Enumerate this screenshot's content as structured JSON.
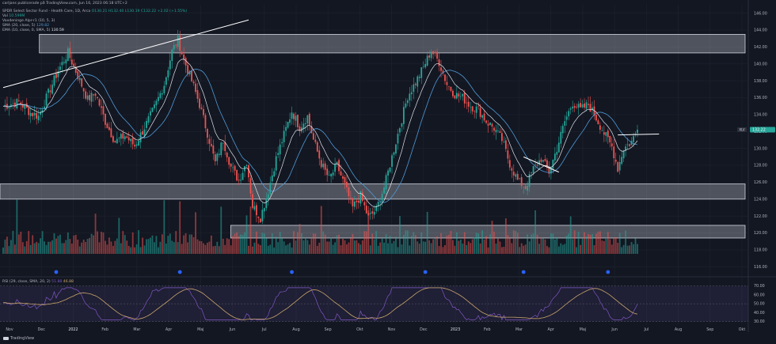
{
  "header": {
    "author_line": "carljans publicerade på TradingView.com, Jun 16, 2023 06:18 UTC+2",
    "symbol_line": "SPDR Select Sector Fund - Health Care, 1D, Arca",
    "ohlc": "O130.21 H132.40 L130.19 C132.22 +2.02 (+1.55%)",
    "vol_label": "Vol",
    "vol_value": "10.599M",
    "ind1": "Vaxdeninge Alpr-r1 (10, 5, 3)",
    "sma_label": "SMA (20, close, 5)",
    "sma_value": "129.82",
    "ema_label": "EMA (10, close, 0, SMA, 5)",
    "ema_value": "130.59",
    "rsi_label": "RSI (29, close, SMA, 20, 2)",
    "rsi_value1": "51.88",
    "rsi_value2": "46.88"
  },
  "branding": {
    "name": "TradingView"
  },
  "colors": {
    "up": "#26a69a",
    "down": "#ef5350",
    "sma": "#4f9ad6",
    "ema": "#e0e3eb",
    "rsi": "#7e57c2",
    "rsi_ma": "#c9a66b",
    "zone": "#d1d4dc",
    "bg": "#131722"
  },
  "chart_data": [
    {
      "type": "candlestick",
      "title": "SPDR Select Sector Fund - Health Care, 1D, Arca",
      "symbol": "XLV",
      "last_price": "132.22",
      "x_tick_labels": [
        "Nov",
        "Dec",
        "2022",
        "Feb",
        "Mar",
        "Apr",
        "Maj",
        "Jun",
        "Jul",
        "Aug",
        "Sep",
        "Okt",
        "Nov",
        "Dec",
        "2023",
        "Feb",
        "Mar",
        "Apr",
        "Maj",
        "Jun",
        "Jul",
        "Aug",
        "Sep",
        "Okt"
      ],
      "y_tick_labels": [
        "146.00",
        "144.00",
        "142.00",
        "140.00",
        "138.00",
        "136.00",
        "134.00",
        "132.00",
        "130.00",
        "128.00",
        "126.00",
        "124.00",
        "122.00",
        "120.00",
        "118.00",
        "116.00"
      ],
      "ylim": [
        115,
        147
      ],
      "trend_path": [
        [
          0,
          135.0
        ],
        [
          8,
          135.5
        ],
        [
          14,
          134.2
        ],
        [
          18,
          133.8
        ],
        [
          22,
          136.0
        ],
        [
          28,
          139.2
        ],
        [
          33,
          141.3
        ],
        [
          38,
          138.6
        ],
        [
          43,
          135.8
        ],
        [
          47,
          136.5
        ],
        [
          52,
          133.2
        ],
        [
          57,
          130.8
        ],
        [
          62,
          131.5
        ],
        [
          67,
          130.3
        ],
        [
          72,
          132.5
        ],
        [
          77,
          134.8
        ],
        [
          82,
          137.6
        ],
        [
          86,
          141.5
        ],
        [
          89,
          142.9
        ],
        [
          92,
          140.5
        ],
        [
          96,
          138.0
        ],
        [
          100,
          135.2
        ],
        [
          104,
          131.8
        ],
        [
          108,
          128.3
        ],
        [
          112,
          131.0
        ],
        [
          116,
          127.8
        ],
        [
          120,
          126.2
        ],
        [
          124,
          128.5
        ],
        [
          127,
          123.2
        ],
        [
          131,
          121.8
        ],
        [
          135,
          125.0
        ],
        [
          139,
          128.8
        ],
        [
          143,
          131.6
        ],
        [
          147,
          134.4
        ],
        [
          151,
          132.5
        ],
        [
          155,
          133.8
        ],
        [
          158,
          131.0
        ],
        [
          162,
          128.2
        ],
        [
          166,
          126.4
        ],
        [
          170,
          128.0
        ],
        [
          174,
          125.6
        ],
        [
          178,
          123.0
        ],
        [
          182,
          124.4
        ],
        [
          186,
          121.8
        ],
        [
          190,
          122.8
        ],
        [
          194,
          125.4
        ],
        [
          198,
          129.0
        ],
        [
          202,
          132.6
        ],
        [
          206,
          136.2
        ],
        [
          210,
          137.8
        ],
        [
          214,
          139.6
        ],
        [
          218,
          141.6
        ],
        [
          222,
          140.2
        ],
        [
          226,
          137.6
        ],
        [
          230,
          136.4
        ],
        [
          234,
          136.0
        ],
        [
          238,
          135.0
        ],
        [
          242,
          134.6
        ],
        [
          246,
          133.2
        ],
        [
          250,
          132.4
        ],
        [
          254,
          131.0
        ],
        [
          258,
          128.2
        ],
        [
          262,
          126.2
        ],
        [
          266,
          125.4
        ],
        [
          270,
          127.6
        ],
        [
          274,
          128.8
        ],
        [
          278,
          127.2
        ],
        [
          282,
          130.0
        ],
        [
          286,
          133.2
        ],
        [
          290,
          135.4
        ],
        [
          294,
          134.6
        ],
        [
          298,
          135.2
        ],
        [
          302,
          133.6
        ],
        [
          306,
          131.8
        ],
        [
          310,
          130.2
        ],
        [
          313,
          127.6
        ],
        [
          316,
          130.0
        ],
        [
          320,
          130.8
        ],
        [
          323,
          132.22
        ]
      ],
      "zones": [
        {
          "from": 141.3,
          "to": 143.5,
          "x_start": 0.0526,
          "x_end": 1.0
        },
        {
          "from": 124.0,
          "to": 125.8,
          "x_start": 0.0,
          "x_end": 1.0
        },
        {
          "from": 119.4,
          "to": 120.9,
          "x_start": 0.3083,
          "x_end": 1.0
        }
      ],
      "trendlines": [
        {
          "from": [
            0,
            137.2
          ],
          "to": [
            125,
            145.2
          ]
        },
        {
          "from": [
            265,
            129.0
          ],
          "to": [
            283,
            127.2
          ]
        },
        {
          "from": [
            313,
            131.6
          ],
          "to": [
            334,
            131.7
          ]
        }
      ],
      "sma_period": 20,
      "ema_period": 10
    },
    {
      "type": "line",
      "title": "RSI (29, close, SMA, 20, 2)",
      "y_tick_labels": [
        "70.00",
        "60.00",
        "50.00",
        "40.00",
        "30.00"
      ],
      "ylim": [
        27,
        75
      ],
      "upper_band": 70,
      "lower_band": 30
    }
  ]
}
